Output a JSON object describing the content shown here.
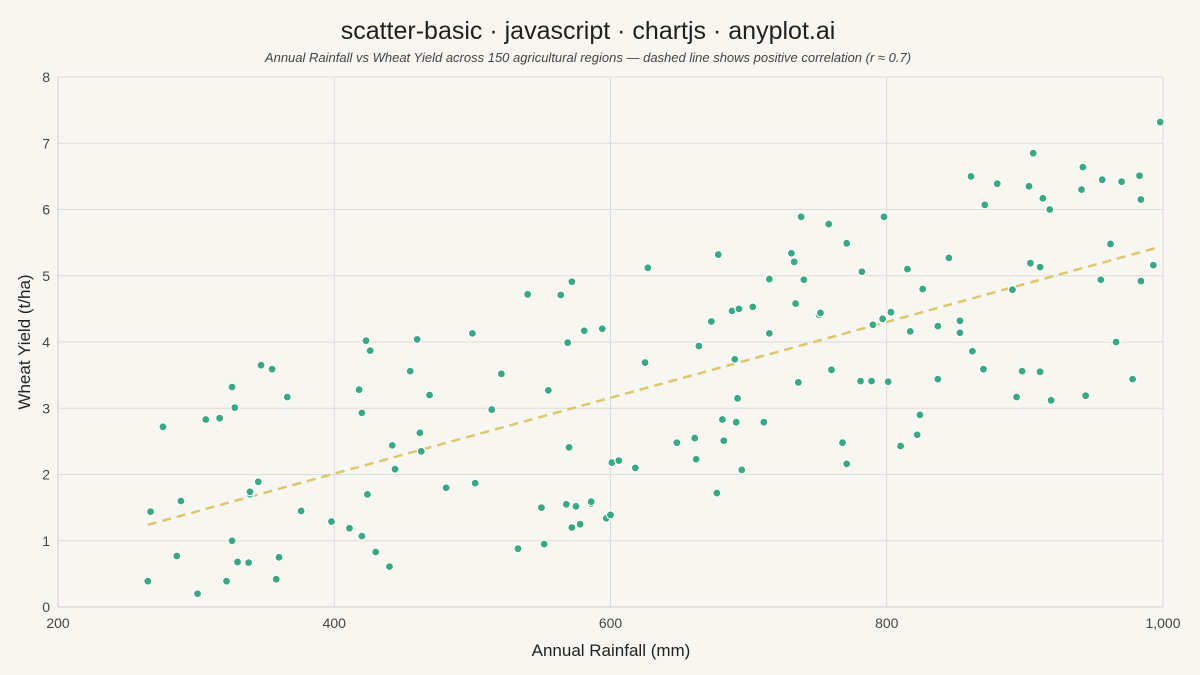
{
  "title": "scatter-basic · javascript · chartjs · anyplot.ai",
  "subtitle": "Annual Rainfall vs Wheat Yield across 150 agricultural regions — dashed line shows positive correlation (r ≈ 0.7)",
  "colors": {
    "background": "#f8f6f0",
    "points": "#3aa885",
    "trend_line": "#dcc76e",
    "grid": "#dcdcdc"
  },
  "chart_data": {
    "type": "scatter",
    "title": "scatter-basic · javascript · chartjs · anyplot.ai",
    "subtitle": "Annual Rainfall vs Wheat Yield across 150 agricultural regions — dashed line shows positive correlation (r ≈ 0.7)",
    "xlabel": "Annual Rainfall (mm)",
    "ylabel": "Wheat Yield (t/ha)",
    "xlim": [
      200,
      1000
    ],
    "ylim": [
      0,
      8
    ],
    "x_ticks": [
      200,
      400,
      600,
      800,
      1000
    ],
    "x_tick_labels": [
      "200",
      "400",
      "600",
      "800",
      "1,000"
    ],
    "y_ticks": [
      0,
      1,
      2,
      3,
      4,
      5,
      6,
      7,
      8
    ],
    "y_tick_labels": [
      "0",
      "1",
      "2",
      "3",
      "4",
      "5",
      "6",
      "7",
      "8"
    ],
    "grid": true,
    "legend": "none",
    "trend_line": {
      "x": [
        265,
        995
      ],
      "y": [
        1.24,
        5.42
      ]
    },
    "points": [
      [
        265,
        0.39
      ],
      [
        267,
        1.44
      ],
      [
        276,
        2.72
      ],
      [
        286,
        0.77
      ],
      [
        289,
        1.6
      ],
      [
        301,
        0.2
      ],
      [
        307,
        2.83
      ],
      [
        317,
        2.85
      ],
      [
        322,
        0.39
      ],
      [
        326,
        3.32
      ],
      [
        326,
        1.0
      ],
      [
        328,
        3.01
      ],
      [
        330,
        0.68
      ],
      [
        338,
        0.67
      ],
      [
        339,
        1.7
      ],
      [
        339,
        1.74
      ],
      [
        345,
        1.89
      ],
      [
        347,
        3.65
      ],
      [
        355,
        3.59
      ],
      [
        358,
        0.42
      ],
      [
        360,
        0.75
      ],
      [
        366,
        3.17
      ],
      [
        376,
        1.45
      ],
      [
        398,
        1.29
      ],
      [
        411,
        1.19
      ],
      [
        418,
        3.28
      ],
      [
        420,
        1.07
      ],
      [
        420,
        2.93
      ],
      [
        423,
        4.02
      ],
      [
        424,
        1.7
      ],
      [
        426,
        3.87
      ],
      [
        430,
        0.83
      ],
      [
        440,
        0.61
      ],
      [
        442,
        2.44
      ],
      [
        444,
        2.08
      ],
      [
        455,
        3.56
      ],
      [
        460,
        4.04
      ],
      [
        462,
        2.63
      ],
      [
        463,
        2.35
      ],
      [
        469,
        3.2
      ],
      [
        481,
        1.8
      ],
      [
        500,
        4.13
      ],
      [
        502,
        1.87
      ],
      [
        514,
        2.98
      ],
      [
        521,
        3.52
      ],
      [
        533,
        0.88
      ],
      [
        540,
        4.72
      ],
      [
        550,
        1.5
      ],
      [
        552,
        0.95
      ],
      [
        555,
        3.27
      ],
      [
        564,
        4.71
      ],
      [
        568,
        1.55
      ],
      [
        569,
        3.99
      ],
      [
        570,
        2.41
      ],
      [
        572,
        4.91
      ],
      [
        572,
        1.2
      ],
      [
        575,
        1.52
      ],
      [
        578,
        1.25
      ],
      [
        581,
        4.17
      ],
      [
        586,
        1.56
      ],
      [
        586,
        1.59
      ],
      [
        594,
        4.2
      ],
      [
        597,
        1.34
      ],
      [
        600,
        1.39
      ],
      [
        601,
        2.18
      ],
      [
        606,
        2.21
      ],
      [
        618,
        2.1
      ],
      [
        625,
        3.69
      ],
      [
        627,
        5.12
      ],
      [
        648,
        2.48
      ],
      [
        661,
        2.55
      ],
      [
        662,
        2.23
      ],
      [
        664,
        3.94
      ],
      [
        673,
        4.31
      ],
      [
        677,
        1.72
      ],
      [
        678,
        5.32
      ],
      [
        681,
        2.83
      ],
      [
        682,
        2.51
      ],
      [
        688,
        4.47
      ],
      [
        690,
        3.74
      ],
      [
        691,
        2.79
      ],
      [
        692,
        3.15
      ],
      [
        693,
        4.5
      ],
      [
        695,
        2.07
      ],
      [
        703,
        4.53
      ],
      [
        711,
        2.79
      ],
      [
        715,
        4.13
      ],
      [
        715,
        4.95
      ],
      [
        731,
        5.34
      ],
      [
        733,
        5.21
      ],
      [
        734,
        4.58
      ],
      [
        736,
        3.39
      ],
      [
        738,
        5.89
      ],
      [
        740,
        4.94
      ],
      [
        751,
        4.41
      ],
      [
        752,
        4.44
      ],
      [
        758,
        5.78
      ],
      [
        760,
        3.58
      ],
      [
        768,
        2.48
      ],
      [
        771,
        5.49
      ],
      [
        771,
        2.16
      ],
      [
        781,
        3.41
      ],
      [
        782,
        5.06
      ],
      [
        789,
        3.41
      ],
      [
        790,
        4.26
      ],
      [
        797,
        4.35
      ],
      [
        798,
        5.89
      ],
      [
        801,
        3.4
      ],
      [
        803,
        4.45
      ],
      [
        810,
        2.43
      ],
      [
        815,
        5.1
      ],
      [
        817,
        4.16
      ],
      [
        822,
        2.6
      ],
      [
        824,
        2.9
      ],
      [
        826,
        4.8
      ],
      [
        837,
        3.44
      ],
      [
        837,
        4.24
      ],
      [
        845,
        5.27
      ],
      [
        853,
        4.32
      ],
      [
        853,
        4.14
      ],
      [
        861,
        6.5
      ],
      [
        862,
        3.86
      ],
      [
        870,
        3.59
      ],
      [
        871,
        6.07
      ],
      [
        880,
        6.39
      ],
      [
        891,
        4.79
      ],
      [
        894,
        3.17
      ],
      [
        898,
        3.56
      ],
      [
        903,
        6.35
      ],
      [
        904,
        5.19
      ],
      [
        906,
        6.85
      ],
      [
        911,
        3.55
      ],
      [
        911,
        5.13
      ],
      [
        913,
        6.17
      ],
      [
        918,
        6.0
      ],
      [
        919,
        3.12
      ],
      [
        941,
        6.3
      ],
      [
        942,
        6.64
      ],
      [
        944,
        3.19
      ],
      [
        955,
        4.94
      ],
      [
        956,
        6.45
      ],
      [
        962,
        5.48
      ],
      [
        966,
        4.0
      ],
      [
        970,
        6.42
      ],
      [
        978,
        3.44
      ],
      [
        983,
        6.51
      ],
      [
        984,
        4.92
      ],
      [
        984,
        6.15
      ],
      [
        993,
        5.16
      ],
      [
        998,
        7.32
      ]
    ]
  }
}
